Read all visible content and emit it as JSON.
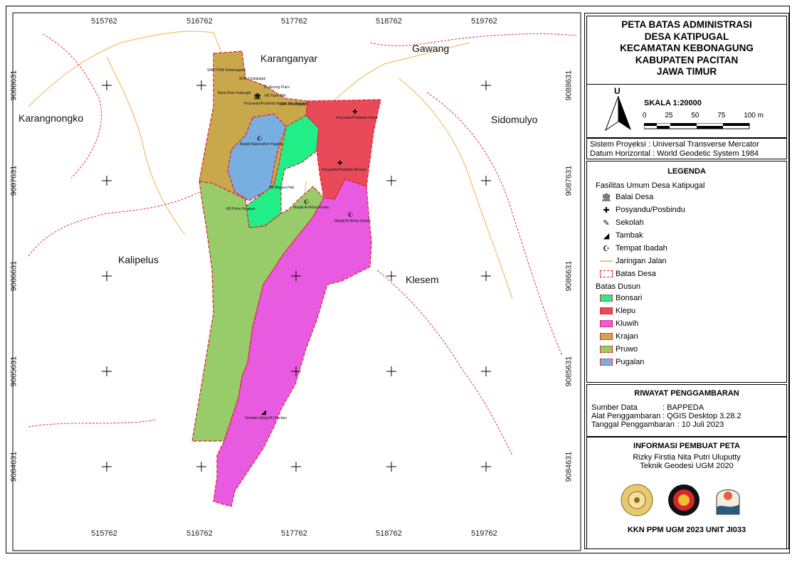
{
  "title_lines": [
    "PETA BATAS ADMINISTRASI",
    "DESA KATIPUGAL",
    "KECAMATAN KEBONAGUNG",
    "KABUPATEN PACITAN",
    "JAWA TIMUR"
  ],
  "north_label": "U",
  "scale": {
    "label": "SKALA 1:20000",
    "ticks": [
      "0",
      "25",
      "50",
      "75",
      "100 m"
    ]
  },
  "projection": {
    "system": "Sistem Proyeksi  : Universal Transverse Mercator",
    "datum": "Datum Horizontal : World Geodetic System 1984"
  },
  "legend": {
    "title": "LEGENDA",
    "facilities_heading": "Fasilitas Umum Desa Katipugal",
    "facilities": [
      {
        "icon": "balai-desa-icon",
        "glyph": "🏛",
        "label": "Balai Desa"
      },
      {
        "icon": "posyandu-icon",
        "glyph": "✚",
        "label": "Posyandu/Posbindu"
      },
      {
        "icon": "sekolah-icon",
        "glyph": "✎",
        "label": "Sekolah"
      },
      {
        "icon": "tambak-icon",
        "glyph": "◢",
        "label": "Tambak"
      },
      {
        "icon": "tempat-ibadah-icon",
        "glyph": "☪",
        "label": "Tempat Ibadah"
      }
    ],
    "road_label": "Jaringan Jalan",
    "boundary_label": "Batas Desa",
    "dusun_heading": "Batas Dusun",
    "dusun": [
      {
        "label": "Bonsari",
        "color": "#22ee88"
      },
      {
        "label": "Klepu",
        "color": "#e84a5a"
      },
      {
        "label": "Kluwih",
        "color": "#e85ae0"
      },
      {
        "label": "Krajan",
        "color": "#c9a84c"
      },
      {
        "label": "Pruwo",
        "color": "#98cc6a"
      },
      {
        "label": "Pugalan",
        "color": "#78aee0"
      }
    ]
  },
  "riwayat": {
    "title": "RIWAYAT PENGGAMBARAN",
    "rows": [
      {
        "k": "Sumber Data",
        "v": ": BAPPEDA"
      },
      {
        "k": "Alat Penggambaran",
        "v": ": QGIS Desktop 3.28.2"
      },
      {
        "k": "Tanggal Penggambaran",
        "v": ": 10 Juli 2023"
      }
    ]
  },
  "info": {
    "title": "INFORMASI PEMBUAT PETA",
    "author": "Rizky Firstia Nita Putri Uluputty",
    "affiliation": "Teknik Geodesi UGM 2020",
    "footer": "KKN PPM UGM 2023 UNIT JI033"
  },
  "grid": {
    "x_labels": [
      "515762",
      "516762",
      "517762",
      "518762",
      "519762"
    ],
    "y_labels": [
      "9088631",
      "9087631",
      "9086631",
      "9085631",
      "9084631"
    ]
  },
  "places": [
    "Karanganyar",
    "Gawang",
    "Karangnongko",
    "Sidomulyo",
    "Kalipelus",
    "Klesem"
  ],
  "pois": [
    "SMP PGRI Kebonagung",
    "SDN 1 Katipugal",
    "TK Among Putro",
    "Balai Desa Katipugal",
    "Posyandu/Posbindu Krajan dan Pugalan",
    "KB Tiara Pilih",
    "SDN 2 Katipugal",
    "Posyandu/Posbindu Klepu",
    "Masjid Baiturrahim Pugalan",
    "Posyandu/Posbindu Bonsari",
    "KB Mutiara Hati",
    "KB Putra Harapan",
    "Masjid Al-Ikhlas Pruwo",
    "Masjid Al-Ikhlas Kluwih",
    "Tambak Udang BJ Pacitan"
  ],
  "colors": {
    "boundary": "#e0202a",
    "road": "#f2b24a",
    "frame": "#000000"
  }
}
